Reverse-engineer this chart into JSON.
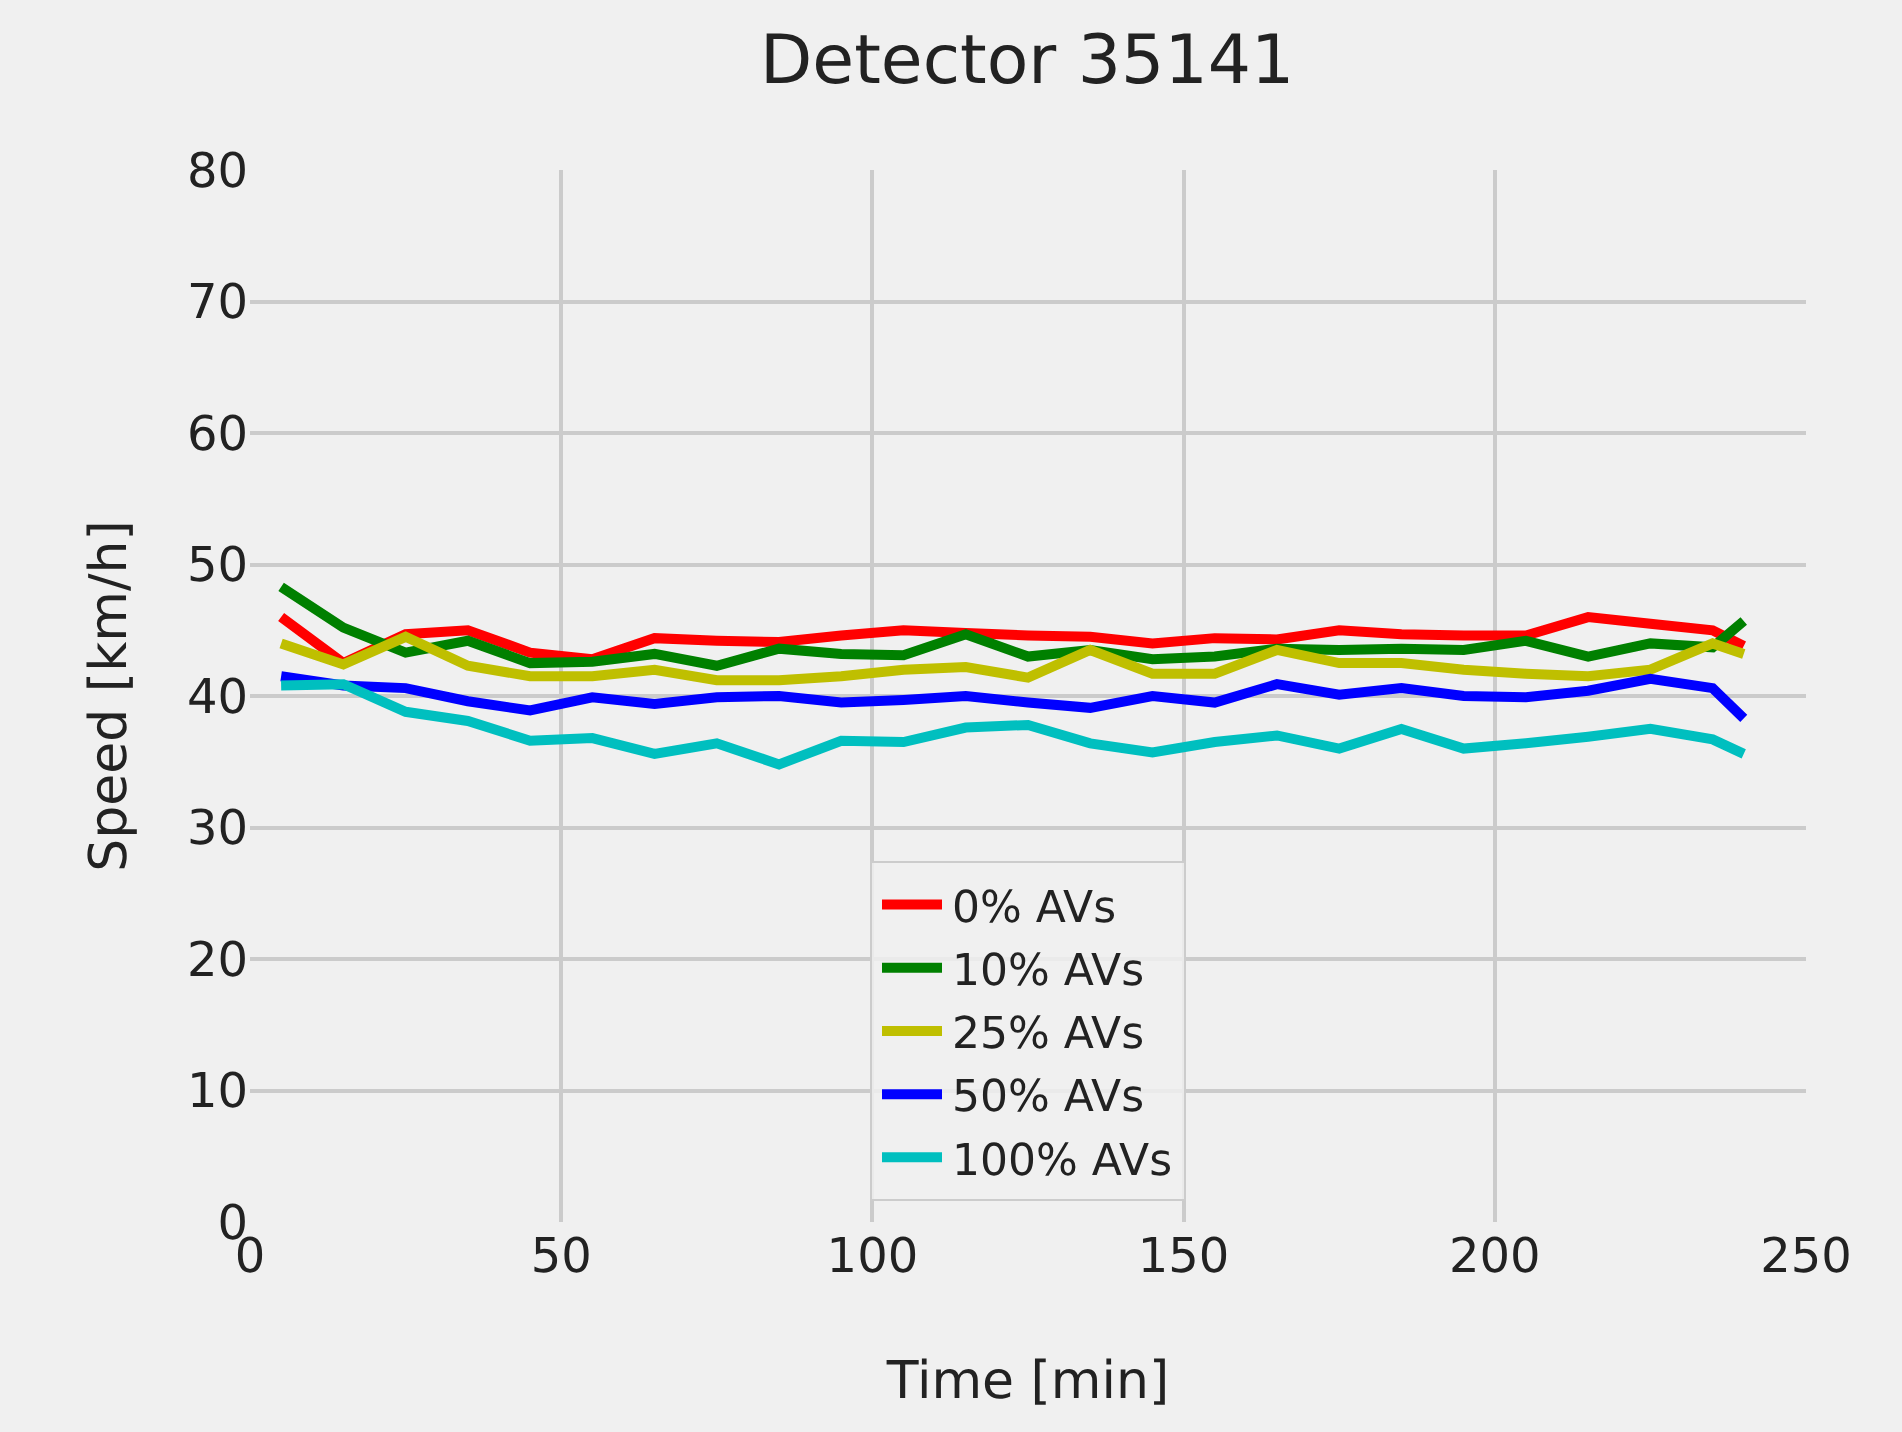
{
  "chart_data": {
    "type": "line",
    "title": "Detector 35141",
    "xlabel": "Time [min]",
    "ylabel": "Speed [km/h]",
    "x": [
      5,
      15,
      25,
      35,
      45,
      55,
      65,
      75,
      85,
      95,
      105,
      115,
      125,
      135,
      145,
      155,
      165,
      175,
      185,
      195,
      205,
      215,
      225,
      235,
      240
    ],
    "series": [
      {
        "name": "0% AVs",
        "color": "#ff0000",
        "values": [
          46,
          42.5,
          44.7,
          45,
          43.3,
          42.8,
          44.4,
          44.2,
          44.1,
          44.6,
          45,
          44.8,
          44.6,
          44.5,
          44,
          44.4,
          44.3,
          45,
          44.7,
          44.6,
          44.6,
          46,
          45.5,
          45,
          43.8
        ]
      },
      {
        "name": "10% AVs",
        "color": "#008000",
        "values": [
          48.3,
          45.2,
          43.3,
          44.2,
          42.5,
          42.6,
          43.2,
          42.3,
          43.6,
          43.2,
          43.1,
          44.7,
          43,
          43.5,
          42.8,
          43,
          43.6,
          43.5,
          43.6,
          43.5,
          44.2,
          43,
          44,
          43.7,
          45.7
        ]
      },
      {
        "name": "25% AVs",
        "color": "#bfbf00",
        "values": [
          44,
          42.4,
          44.5,
          42.3,
          41.5,
          41.5,
          42,
          41.2,
          41.2,
          41.5,
          42,
          42.2,
          41.4,
          43.5,
          41.7,
          41.7,
          43.5,
          42.5,
          42.5,
          42,
          41.7,
          41.5,
          42,
          44,
          43.2
        ]
      },
      {
        "name": "50% AVs",
        "color": "#0000ff",
        "values": [
          41.5,
          40.8,
          40.6,
          39.6,
          38.9,
          39.9,
          39.4,
          39.9,
          40,
          39.5,
          39.7,
          40,
          39.5,
          39.1,
          40,
          39.5,
          40.9,
          40.1,
          40.6,
          40,
          39.9,
          40.4,
          41.3,
          40.6,
          38.3
        ]
      },
      {
        "name": "100% AVs",
        "color": "#00bfbf",
        "values": [
          40.8,
          40.9,
          38.8,
          38.1,
          36.6,
          36.8,
          35.6,
          36.4,
          34.8,
          36.6,
          36.5,
          37.6,
          37.8,
          36.4,
          35.7,
          36.5,
          37,
          36,
          37.5,
          36,
          36.4,
          36.9,
          37.5,
          36.7,
          35.6
        ]
      }
    ],
    "xlim": [
      0,
      250
    ],
    "xticks": [
      0,
      50,
      100,
      150,
      200,
      250
    ],
    "ylim": [
      0,
      80
    ],
    "yticks": [
      0,
      10,
      20,
      30,
      40,
      50,
      60,
      70,
      80
    ],
    "grid": true,
    "legend": "bottom",
    "marker": "none",
    "line_style": "solid"
  }
}
